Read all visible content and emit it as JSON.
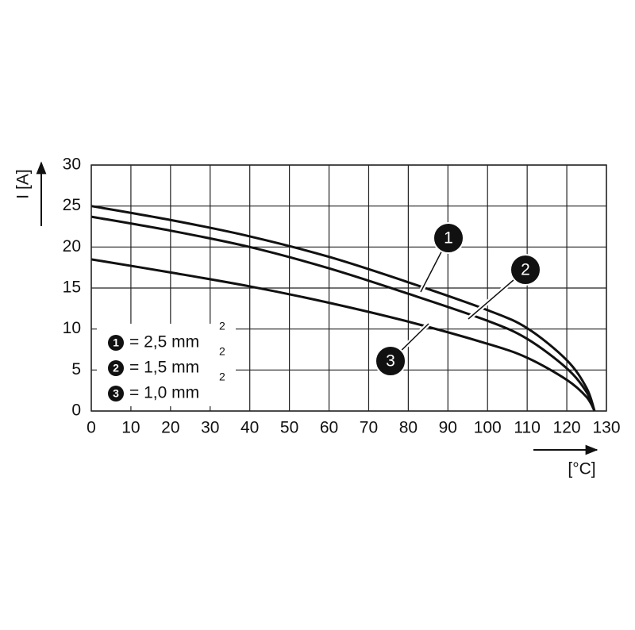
{
  "chart_data": {
    "type": "line",
    "y_label": "I [A]",
    "x_label": "[°C]",
    "x": [
      0,
      20,
      40,
      60,
      80,
      100,
      110,
      120,
      125,
      127
    ],
    "series": [
      {
        "name": "= 2,5 mm",
        "name_sup": "2",
        "marker": "1",
        "color": "#111111",
        "values": [
          25,
          23.3,
          21.3,
          18.8,
          15.7,
          12.3,
          10.1,
          6.2,
          2.8,
          0
        ]
      },
      {
        "name": "= 1,5 mm",
        "name_sup": "2",
        "marker": "2",
        "color": "#111111",
        "values": [
          23.7,
          22.0,
          20.0,
          17.4,
          14.3,
          11.0,
          8.8,
          5.2,
          2.3,
          0
        ]
      },
      {
        "name": "= 1,0 mm",
        "name_sup": "2",
        "marker": "3",
        "color": "#111111",
        "values": [
          18.5,
          16.9,
          15.2,
          13.2,
          10.9,
          8.2,
          6.5,
          3.8,
          1.7,
          0
        ]
      }
    ],
    "xlim": [
      0,
      130
    ],
    "xticks": [
      0,
      10,
      20,
      30,
      40,
      50,
      60,
      70,
      80,
      90,
      100,
      110,
      120,
      130
    ],
    "ylim": [
      0,
      30
    ],
    "yticks": [
      0,
      5,
      10,
      15,
      20,
      25,
      30
    ],
    "grid": true
  }
}
